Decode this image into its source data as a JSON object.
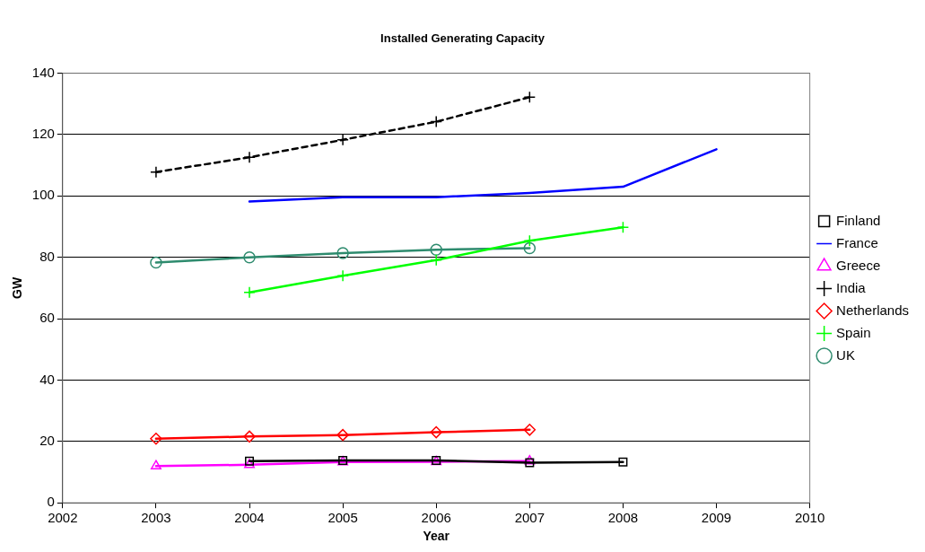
{
  "chart_data": {
    "type": "line",
    "title": "Installed Generating Capacity",
    "xlabel": "Year",
    "ylabel": "GW",
    "xlim": [
      2002,
      2010
    ],
    "xticks": [
      2002,
      2003,
      2004,
      2005,
      2006,
      2007,
      2008,
      2009,
      2010
    ],
    "ylim": [
      0,
      140
    ],
    "yticks": [
      0,
      20,
      40,
      60,
      80,
      100,
      120,
      140
    ],
    "grid": "y",
    "legend": "right",
    "line_style": "solid",
    "series": [
      {
        "name": "Finland",
        "color": "#000000",
        "marker": "square",
        "x": [
          2004,
          2005,
          2006,
          2007,
          2008
        ],
        "values": [
          13.6,
          13.8,
          13.8,
          13.1,
          13.3
        ]
      },
      {
        "name": "France",
        "color": "#0000ff",
        "marker": "none",
        "x": [
          2004,
          2005,
          2006,
          2007,
          2008,
          2009
        ],
        "values": [
          98.2,
          99.6,
          99.6,
          101,
          103,
          115.2
        ]
      },
      {
        "name": "Greece",
        "color": "#ff00ff",
        "marker": "triangle",
        "x": [
          2003,
          2004,
          2005,
          2006,
          2007
        ],
        "values": [
          12,
          12.4,
          13.3,
          13.4,
          13.6
        ]
      },
      {
        "name": "India",
        "color": "#000000",
        "marker": "cross",
        "line_style": "dashed",
        "x": [
          2003,
          2004,
          2005,
          2006,
          2007
        ],
        "values": [
          107.8,
          112.6,
          118.3,
          124.2,
          132.2
        ]
      },
      {
        "name": "Netherlands",
        "color": "#ff0000",
        "marker": "diamond",
        "x": [
          2003,
          2004,
          2005,
          2006,
          2007
        ],
        "values": [
          20.9,
          21.6,
          22.1,
          23,
          23.8
        ]
      },
      {
        "name": "Spain",
        "color": "#00ff00",
        "marker": "cross",
        "x": [
          2004,
          2005,
          2006,
          2007,
          2008
        ],
        "values": [
          68.6,
          74,
          79.1,
          85.4,
          89.8
        ]
      },
      {
        "name": "UK",
        "color": "#2e8b6e",
        "marker": "circle",
        "x": [
          2003,
          2004,
          2005,
          2006,
          2007
        ],
        "values": [
          78.3,
          80,
          81.4,
          82.5,
          83
        ]
      }
    ]
  }
}
